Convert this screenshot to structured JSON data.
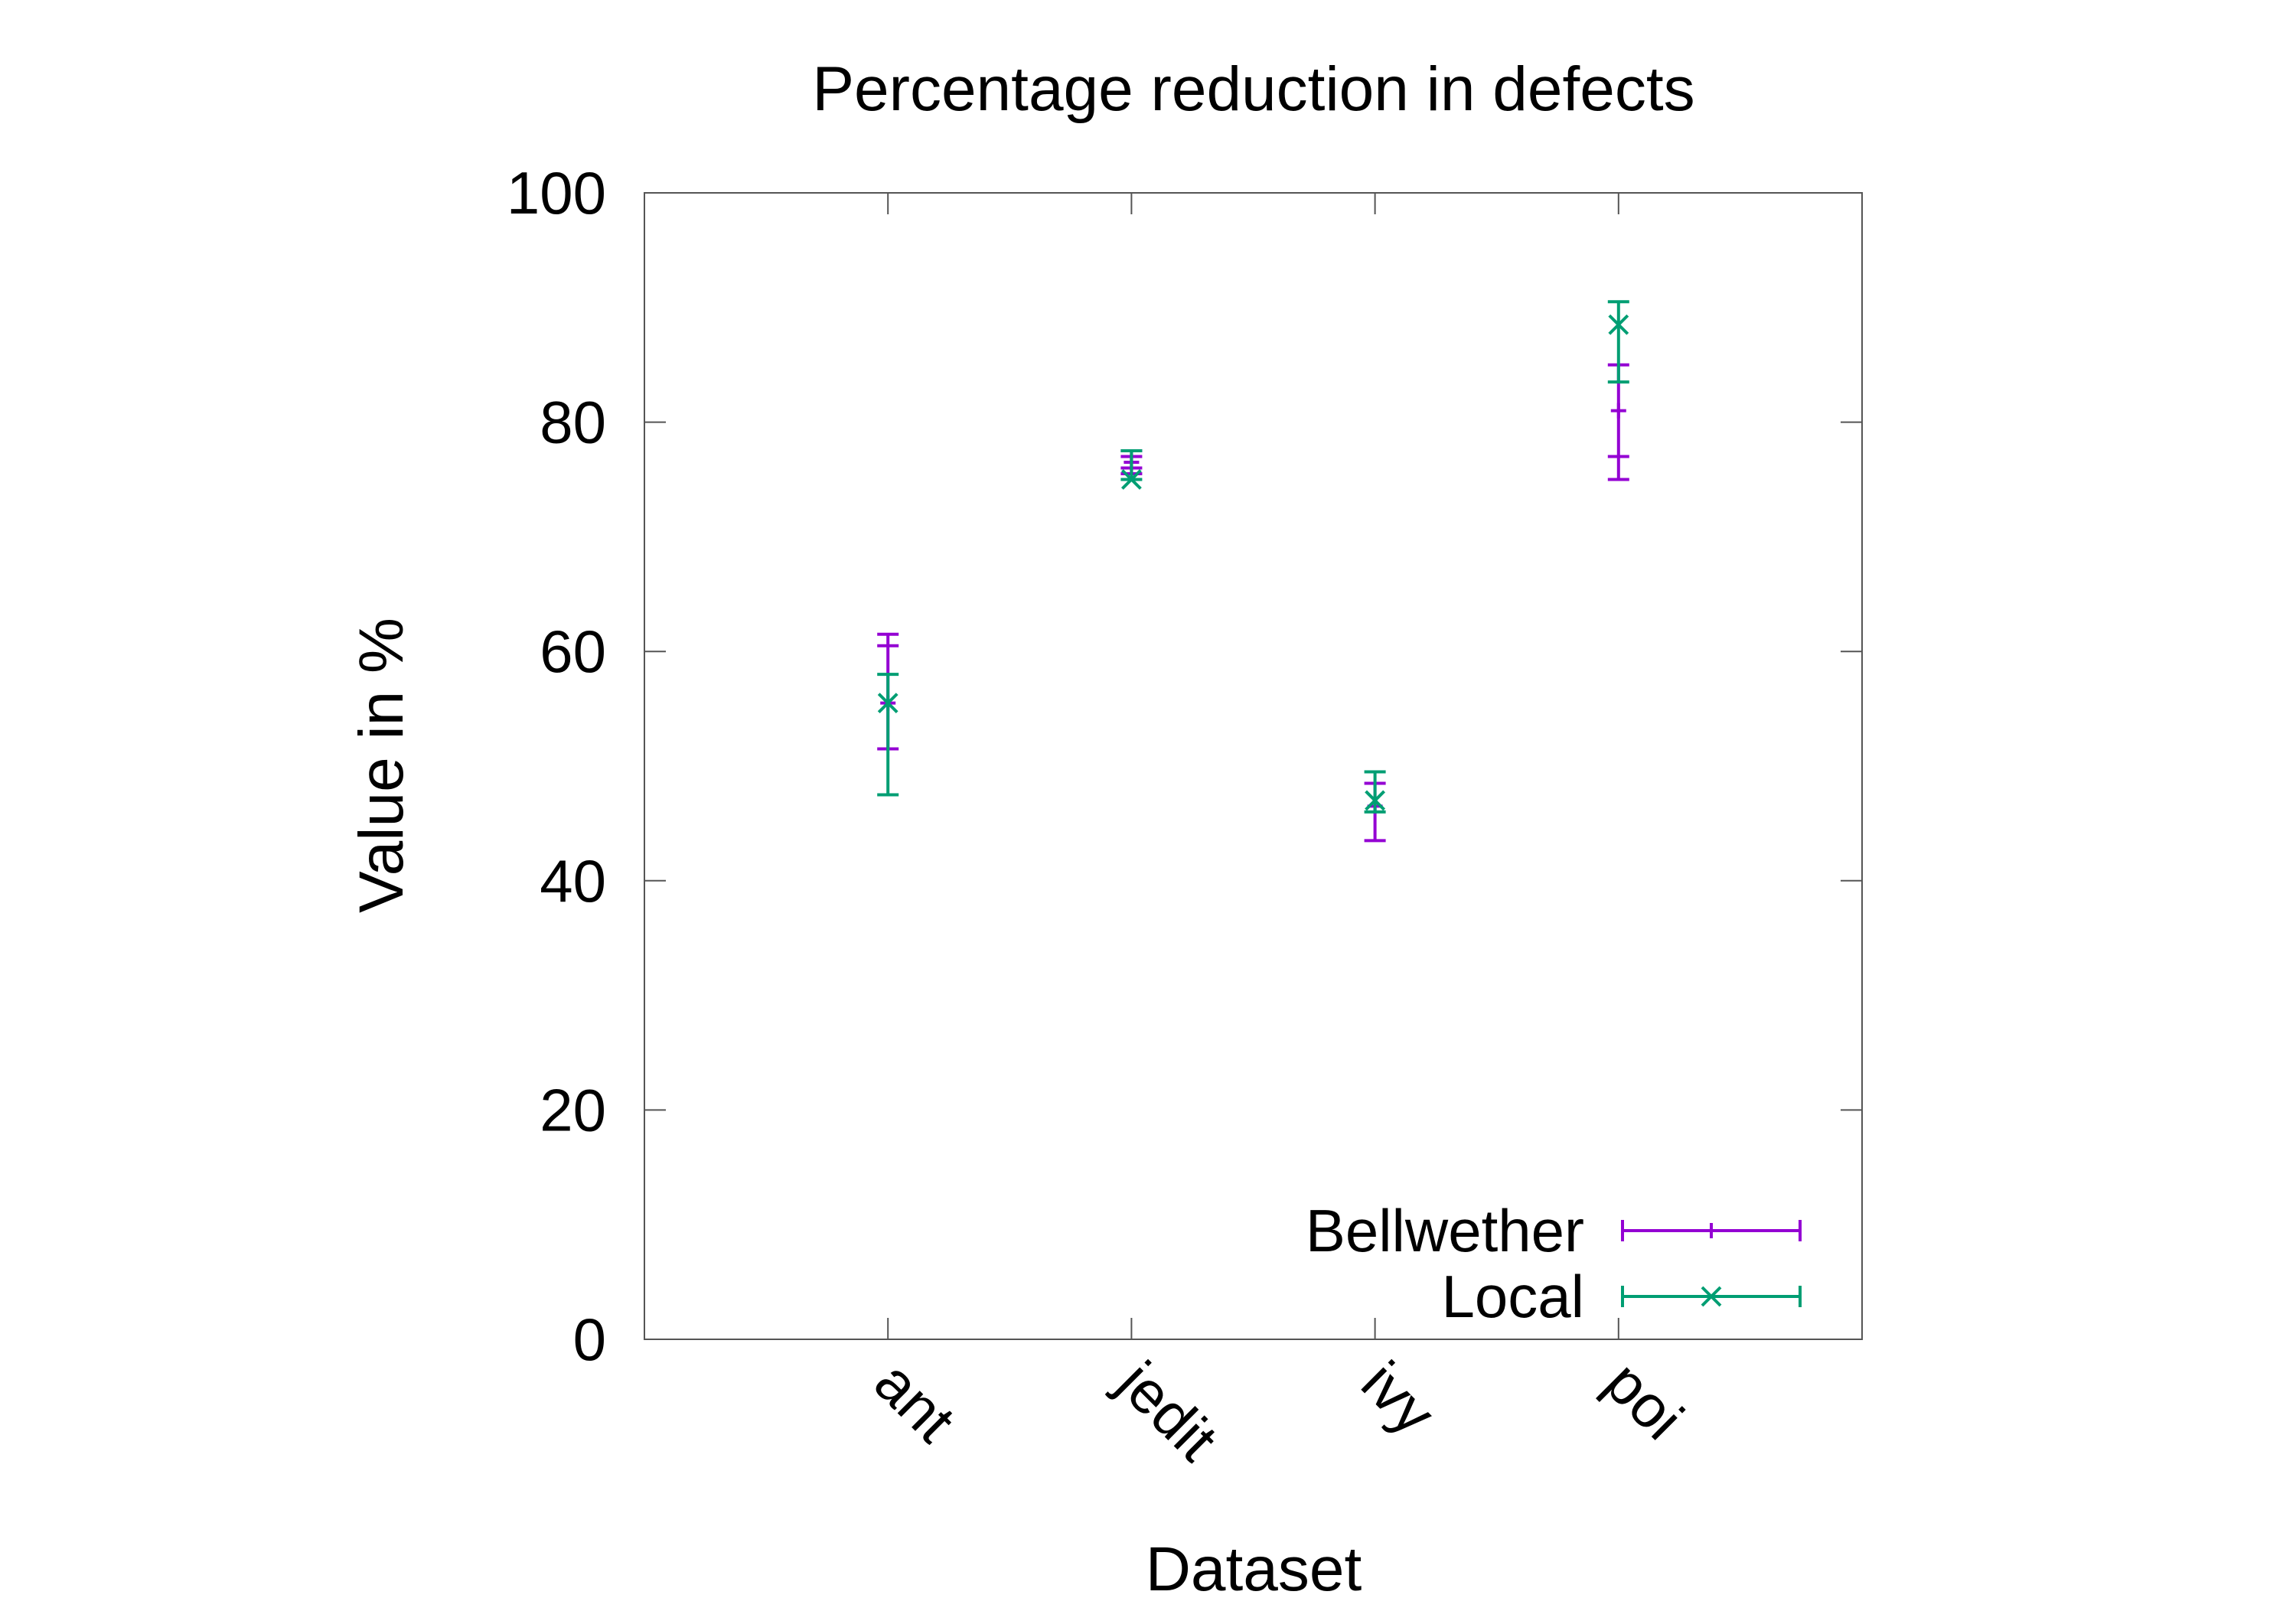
{
  "chart_data": {
    "type": "errorbar",
    "title": "Percentage reduction in defects",
    "xlabel": "Dataset",
    "ylabel": "Value in %",
    "categories": [
      "ant",
      "jedit",
      "ivy",
      "poi"
    ],
    "ylim": [
      0,
      100
    ],
    "yticks": [
      0,
      20,
      40,
      60,
      80,
      100
    ],
    "grid": false,
    "legend_position": "bottom-right",
    "series": [
      {
        "name": "Bellwether",
        "color": "#9400d3",
        "marker": "plus",
        "values": [
          55.5,
          76.5,
          46.5,
          81
        ],
        "lower": [
          51.5,
          75.5,
          43.5,
          75
        ],
        "upper": [
          61.5,
          77.5,
          48.5,
          85
        ],
        "inner_lower": [
          51.5,
          76,
          43.5,
          77
        ],
        "inner_upper": [
          60.5,
          77,
          48.5,
          85
        ]
      },
      {
        "name": "Local",
        "color": "#009e73",
        "marker": "x",
        "values": [
          55.5,
          75,
          47,
          88.5
        ],
        "lower": [
          47.5,
          75,
          46,
          83.5
        ],
        "upper": [
          58,
          77.5,
          49.5,
          90.5
        ],
        "inner_lower": [
          47.5,
          75,
          46,
          83.5
        ],
        "inner_upper": [
          58,
          77.5,
          49.5,
          90.5
        ]
      }
    ]
  }
}
